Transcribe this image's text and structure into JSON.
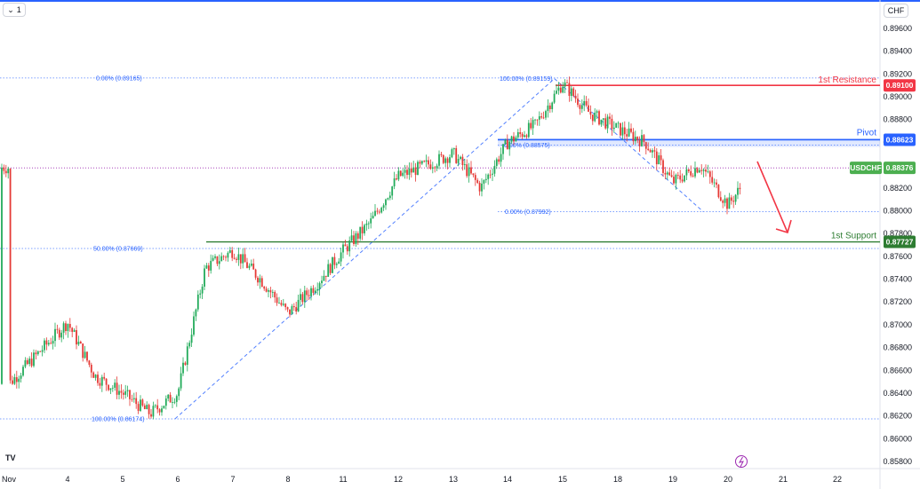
{
  "header": {
    "interval": "1",
    "chevron_icon": "chevron-down-icon",
    "currency": "CHF"
  },
  "logo": {
    "text": "TV"
  },
  "x_axis": {
    "labels": [
      "Nov",
      "4",
      "5",
      "6",
      "7",
      "8",
      "11",
      "12",
      "13",
      "14",
      "15",
      "18",
      "19",
      "20",
      "21",
      "22"
    ]
  },
  "y_axis": {
    "labels": [
      "0.89600",
      "0.89400",
      "0.89200",
      "0.89000",
      "0.88800",
      "0.88600",
      "0.88400",
      "0.88200",
      "0.88000",
      "0.87800",
      "0.87600",
      "0.87400",
      "0.87200",
      "0.87000",
      "0.86800",
      "0.86600",
      "0.86400",
      "0.86200",
      "0.86000",
      "0.85800"
    ]
  },
  "levels": {
    "resistance": {
      "label": "1st Resistance",
      "value": "0.89100",
      "color": "#f23645"
    },
    "pivot": {
      "label": "Pivot",
      "value": "0.88623",
      "color": "#2962ff"
    },
    "support": {
      "label": "1st Support",
      "value": "0.87727",
      "color": "#089981"
    }
  },
  "symbol": {
    "name": "USDCHF",
    "price": "0.88376",
    "color": "#4caf50"
  },
  "fib_labels": {
    "a0": "0.00% (0.89165)",
    "a50": "50.00% (0.87669)",
    "a100": "100.00% (0.86174)",
    "b100": "100.00% (0.89159)",
    "b0": "0.00% (0.88575)",
    "b0low": "0.00% (0.87992)"
  },
  "lightning_icon": "lightning-icon",
  "chart_data": {
    "type": "candlestick",
    "symbol": "USDCHF",
    "currency": "CHF",
    "ylim": [
      0.858,
      0.8965
    ],
    "x_categories": [
      "Nov",
      "4",
      "5",
      "6",
      "7",
      "8",
      "11",
      "12",
      "13",
      "14",
      "15",
      "18",
      "19",
      "20",
      "21",
      "22"
    ],
    "close_path": [
      [
        "Nov",
        0.8648
      ],
      [
        "4",
        0.8702
      ],
      [
        "4",
        0.8655
      ],
      [
        "5",
        0.864
      ],
      [
        "5",
        0.8622
      ],
      [
        "6",
        0.864
      ],
      [
        "6",
        0.875
      ],
      [
        "7",
        0.8765
      ],
      [
        "7",
        0.874
      ],
      [
        "8",
        0.871
      ],
      [
        "8",
        0.8735
      ],
      [
        "11",
        0.8765
      ],
      [
        "11",
        0.879
      ],
      [
        "12",
        0.883
      ],
      [
        "13",
        0.885
      ],
      [
        "13",
        0.882
      ],
      [
        "14",
        0.886
      ],
      [
        "14",
        0.8875
      ],
      [
        "15",
        0.8912
      ],
      [
        "15",
        0.8885
      ],
      [
        "18",
        0.8872
      ],
      [
        "18",
        0.886
      ],
      [
        "19",
        0.8825
      ],
      [
        "19",
        0.884
      ],
      [
        "20",
        0.8805
      ],
      [
        "20",
        0.8838
      ]
    ],
    "levels": [
      {
        "name": "1st Resistance",
        "value": 0.891
      },
      {
        "name": "Pivot",
        "value": 0.88623
      },
      {
        "name": "1st Support",
        "value": 0.87727
      }
    ],
    "last_price": 0.88376,
    "projection": "down"
  }
}
